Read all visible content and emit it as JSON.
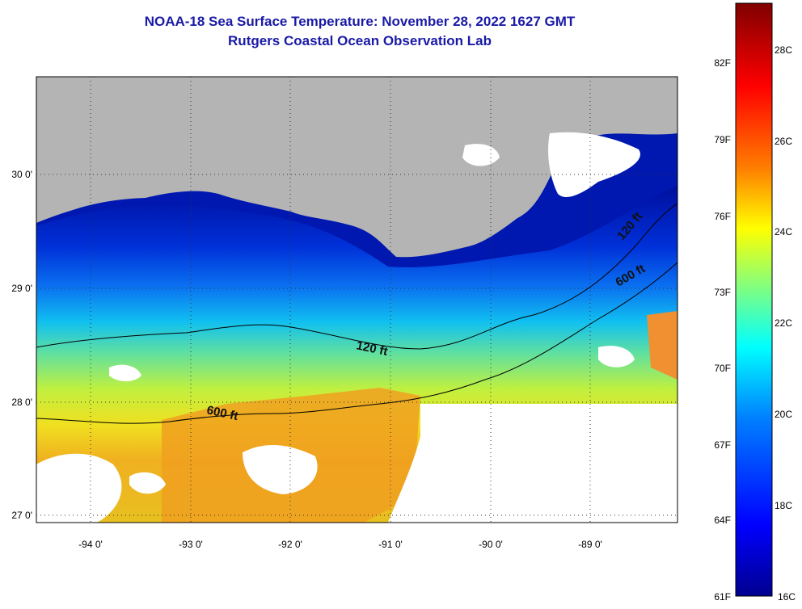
{
  "header": {
    "title": "NOAA-18 Sea Surface Temperature:  November 28, 2022 1627 GMT",
    "subtitle": "Rutgers Coastal Ocean Observation Lab"
  },
  "map": {
    "longitude_labels": [
      "-94 0'",
      "-93 0'",
      "-92 0'",
      "-91 0'",
      "-90 0'",
      "-89 0'"
    ],
    "latitude_labels": [
      "30 0'",
      "29 0'",
      "28 0'",
      "27 0'"
    ],
    "contours": {
      "shelf_120": "120 ft",
      "shelf_600": "600 ft"
    },
    "colors": {
      "land": "#b4b4b4",
      "cloud": "#ffffff",
      "grid": "#333333",
      "contour": "#000000"
    }
  },
  "colorbar": {
    "fahrenheit_labels": [
      "82F",
      "79F",
      "76F",
      "73F",
      "70F",
      "67F",
      "64F",
      "61F"
    ],
    "celsius_labels": [
      "28C",
      "26C",
      "24C",
      "22C",
      "20C",
      "18C",
      "16C"
    ],
    "range_c": [
      16,
      29
    ],
    "colormap": [
      "#00008f",
      "#0000ff",
      "#0080ff",
      "#00ffff",
      "#80ff80",
      "#ffff00",
      "#ff8000",
      "#ff0000",
      "#800000"
    ]
  }
}
